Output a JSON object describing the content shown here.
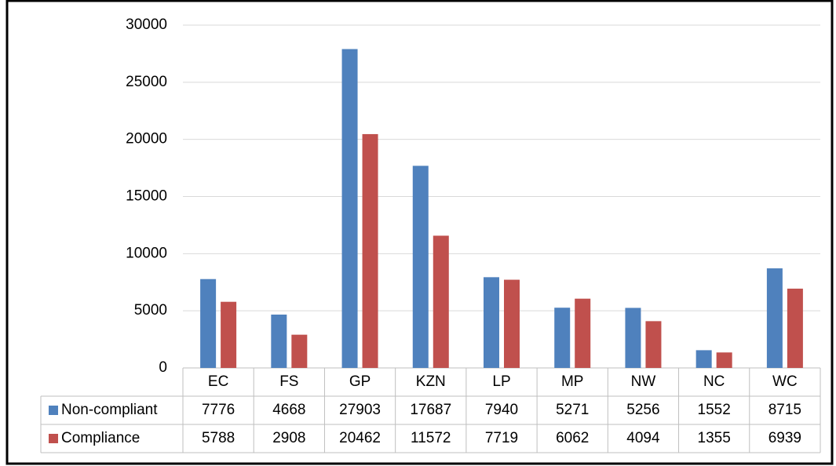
{
  "chart_data": {
    "type": "bar",
    "categories": [
      "EC",
      "FS",
      "GP",
      "KZN",
      "LP",
      "MP",
      "NW",
      "NC",
      "WC"
    ],
    "series": [
      {
        "name": "Non-compliant",
        "color": "#4f81bd",
        "values": [
          7776,
          4668,
          27903,
          17687,
          7940,
          5271,
          5256,
          1552,
          8715
        ]
      },
      {
        "name": "Compliance",
        "color": "#c0504d",
        "values": [
          5788,
          2908,
          20462,
          11572,
          7719,
          6062,
          4094,
          1355,
          6939
        ]
      }
    ],
    "ylim": [
      0,
      30000
    ],
    "yticks": [
      0,
      5000,
      10000,
      15000,
      20000,
      25000,
      30000
    ],
    "grid": true
  }
}
